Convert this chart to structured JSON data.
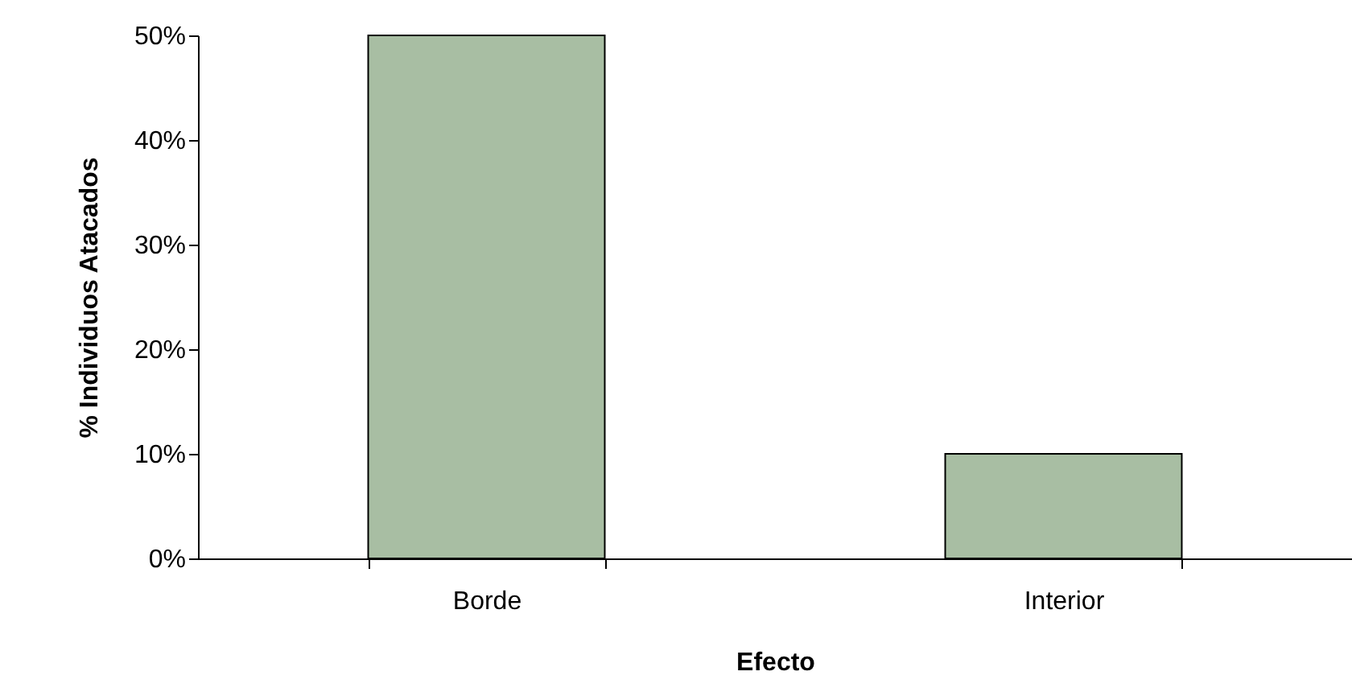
{
  "chart_data": {
    "type": "bar",
    "xlabel": "Efecto",
    "ylabel": "% Individuos Atacados",
    "categories": [
      "Borde",
      "Interior"
    ],
    "values": [
      50,
      10
    ],
    "color": "#a8bea3",
    "ylim": [
      0,
      50
    ],
    "yticks": [
      {
        "value": 0,
        "label": "0%"
      },
      {
        "value": 10,
        "label": "10%"
      },
      {
        "value": 20,
        "label": "20%"
      },
      {
        "value": 30,
        "label": "30%"
      },
      {
        "value": 40,
        "label": "40%"
      },
      {
        "value": 50,
        "label": "50%"
      }
    ],
    "grid": false
  }
}
